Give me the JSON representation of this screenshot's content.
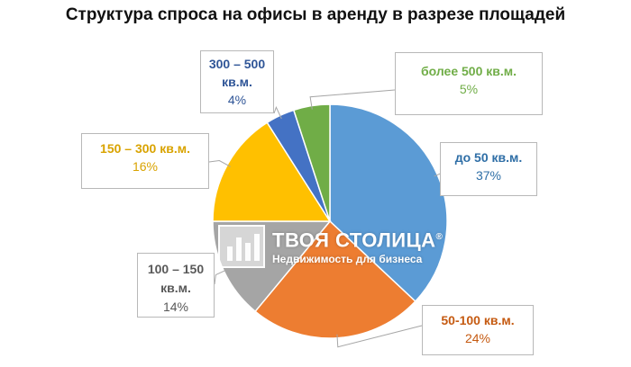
{
  "chart_data": {
    "type": "pie",
    "title": "Структура спроса на офисы в аренду в разрезе площадей",
    "slices": [
      {
        "label": "до 50 кв.м.",
        "value": 37,
        "value_label": "37%",
        "color": "#5b9bd5",
        "label_color": "#2e6ea6"
      },
      {
        "label": "50-100 кв.м.",
        "value": 24,
        "value_label": "24%",
        "color": "#ed7d31",
        "label_color": "#c55a11"
      },
      {
        "label": "100 – 150 кв.м.",
        "value": 14,
        "value_label": "14%",
        "color": "#a5a5a5",
        "label_color": "#595959"
      },
      {
        "label": "150 – 300 кв.м.",
        "value": 16,
        "value_label": "16%",
        "color": "#ffc000",
        "label_color": "#d9a300"
      },
      {
        "label": "300 – 500 кв.м.",
        "value": 4,
        "value_label": "4%",
        "color": "#4472c4",
        "label_color": "#2f5597"
      },
      {
        "label": "более 500 кв.м.",
        "value": 5,
        "value_label": "5%",
        "color": "#70ad47",
        "label_color": "#70ad47"
      }
    ]
  },
  "watermark": {
    "brand": "ТВОЯ СТОЛИЦА",
    "mark": "®",
    "tagline": "Недвижимость для бизнеса"
  }
}
